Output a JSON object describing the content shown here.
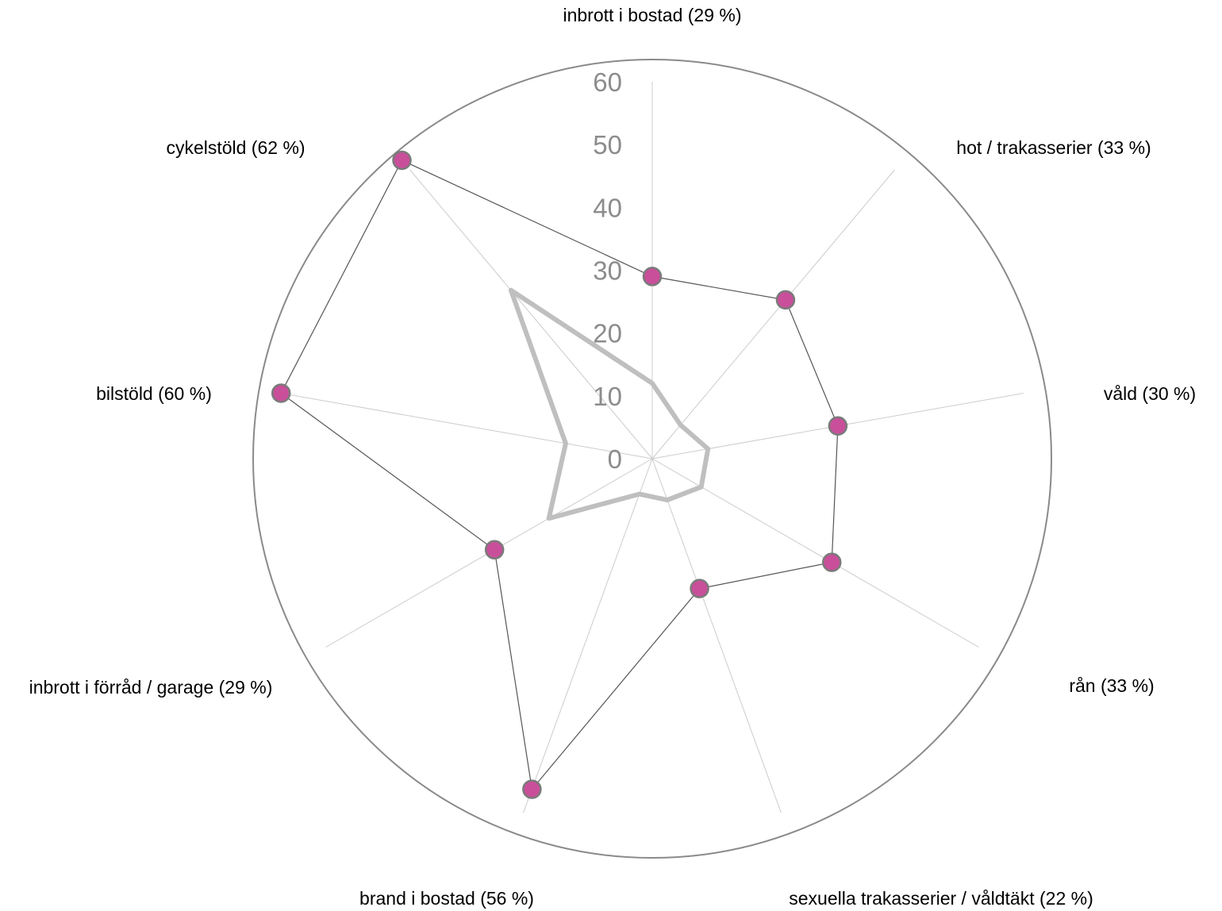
{
  "chart_data": {
    "type": "radar",
    "categories": [
      "inbrott i bostad (29 %)",
      "hot / trakasserier (33 %)",
      "våld (30 %)",
      "rån (33 %)",
      "sexuella trakasserier / våldtäkt (22 %)",
      "brand i bostad (56 %)",
      "inbrott i förråd / garage (29 %)",
      "bilstöld (60 %)",
      "cykelstöld (62 %)"
    ],
    "series": [
      {
        "values": [
          29,
          33,
          30,
          33,
          22,
          56,
          29,
          60,
          62
        ],
        "color": "#c94f9a",
        "line_color": "#555555",
        "markers": true
      },
      {
        "values": [
          12,
          7,
          9,
          9,
          7,
          6,
          19,
          14,
          35
        ],
        "color": "#bfbfbf",
        "markers": false
      }
    ],
    "r_ticks": [
      0,
      10,
      20,
      30,
      40,
      50,
      60
    ],
    "rlim": [
      0,
      60
    ],
    "grid": "spokes",
    "legend": "none"
  }
}
